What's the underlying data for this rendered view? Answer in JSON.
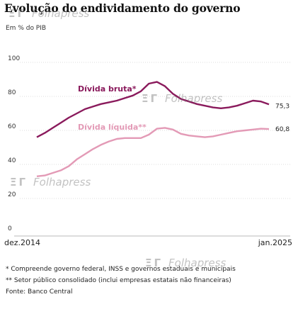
{
  "header": {
    "title": "Evolução do endividamento do governo",
    "subtitle": "Em % do PIB"
  },
  "chart_data": {
    "type": "line",
    "title": "Evolução do endividamento do governo",
    "ylabel": "Em % do PIB",
    "ylim": [
      0,
      100
    ],
    "yticks": [
      0,
      20,
      40,
      60,
      80,
      100
    ],
    "x_start_label": "dez.2014",
    "x_end_label": "jan.2025",
    "series": [
      {
        "name": "Dívida bruta*",
        "color": "#8a1a5c",
        "end_value_label": "75,3",
        "values": [
          56,
          58.5,
          61.5,
          64.5,
          67.5,
          70,
          72.5,
          74,
          75.5,
          76.5,
          77.5,
          79,
          80.5,
          83,
          87.5,
          88.5,
          86,
          81.5,
          78.5,
          77,
          75.5,
          74.5,
          73.5,
          73,
          73.5,
          74.5,
          76,
          77.5,
          77,
          75.3
        ]
      },
      {
        "name": "Dívida líquida**",
        "color": "#e39ab6",
        "end_value_label": "60,8",
        "values": [
          33,
          33.5,
          35,
          36.5,
          39,
          43,
          46,
          49,
          51.5,
          53.5,
          55,
          55.5,
          55.5,
          55.5,
          57.5,
          61,
          61.5,
          60.5,
          58,
          57,
          56.5,
          56,
          56.5,
          57.5,
          58.5,
          59.5,
          60,
          60.5,
          61,
          60.8
        ]
      }
    ]
  },
  "notes": [
    "* Compreende governo federal, INSS e governos estaduais e municipais",
    "** Setor público consolidado (inclui empresas estatais não financeiras)",
    "Fonte: Banco Central"
  ],
  "watermark": {
    "text": "Folhapress",
    "mark": "ΞΓ"
  }
}
